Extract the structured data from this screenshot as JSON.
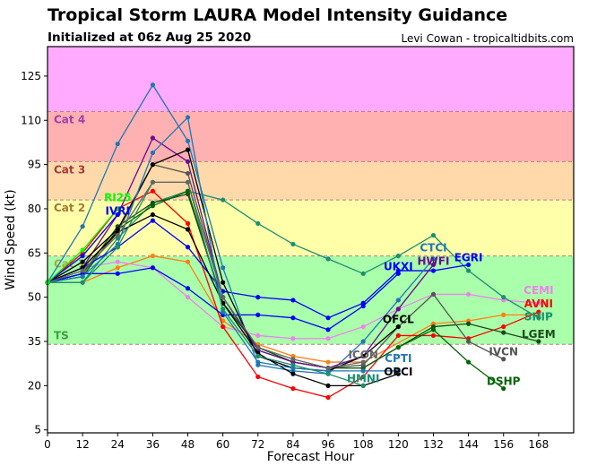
{
  "chart_data": {
    "type": "line",
    "title": "Tropical Storm LAURA Model Intensity Guidance",
    "subtitle": "Initialized at 06z Aug 25 2020",
    "credit": "Levi Cowan - tropicaltidbits.com",
    "xlabel": "Forecast Hour",
    "ylabel": "Wind Speed (kt)",
    "xlim": [
      0,
      180
    ],
    "ylim": [
      4,
      135
    ],
    "xticks": [
      0,
      12,
      24,
      36,
      48,
      60,
      72,
      84,
      96,
      108,
      120,
      132,
      144,
      156,
      168
    ],
    "yticks": [
      5,
      20,
      35,
      50,
      65,
      80,
      95,
      110,
      125
    ],
    "x": [
      0,
      12,
      24,
      36,
      48,
      60,
      72,
      84,
      96,
      108,
      120,
      132,
      144,
      156,
      168
    ],
    "bands": [
      {
        "label": "TS",
        "from": 34,
        "to": 64,
        "color": "#aaffaa",
        "text_color": "#3aa13a"
      },
      {
        "label": "Cat 1",
        "from": 64,
        "to": 83,
        "color": "#ffffaa",
        "text_color": "#a8a840"
      },
      {
        "label": "Cat 2",
        "from": 83,
        "to": 96,
        "color": "#ffd9aa",
        "text_color": "#a8763a"
      },
      {
        "label": "Cat 3",
        "from": 96,
        "to": 113,
        "color": "#ffb0b0",
        "text_color": "#a83a3a"
      },
      {
        "label": "Cat 4",
        "from": 113,
        "to": 135,
        "color": "#ffaaff",
        "text_color": "#a040b0"
      }
    ],
    "series": [
      {
        "name": "",
        "color": "#ff7f0e",
        "values": [
          55,
          55,
          60,
          64,
          62,
          42,
          34,
          30,
          28,
          28,
          null,
          41,
          42,
          44,
          44
        ]
      },
      {
        "name": "CEMI",
        "color": "#ee82ee",
        "values": [
          55,
          60,
          62,
          60,
          50,
          40,
          37,
          36,
          36,
          40,
          46,
          51,
          51,
          49,
          48
        ]
      },
      {
        "name": "AVNI",
        "color": "#ff0000",
        "values": [
          55,
          65,
          80,
          86,
          75,
          40,
          23,
          19,
          16,
          23,
          37,
          37,
          36,
          40,
          45
        ]
      },
      {
        "name": "SHIP",
        "color": "#1a9070",
        "values": [
          55,
          55,
          70,
          82,
          86,
          83,
          75,
          68,
          63,
          58,
          64,
          71,
          59,
          50,
          43
        ]
      },
      {
        "name": "LGEM",
        "color": "#1a4a1a",
        "values": [
          55,
          58,
          74,
          82,
          85,
          48,
          33,
          28,
          26,
          26,
          33,
          40,
          41,
          38,
          35
        ]
      },
      {
        "name": "DSHP",
        "color": "#006400",
        "values": [
          55,
          57,
          73,
          81,
          86,
          48,
          33,
          28,
          26,
          26,
          33,
          39,
          28,
          19,
          null
        ]
      },
      {
        "name": "IVCN",
        "color": "#555555",
        "values": [
          55,
          58,
          72,
          95,
          92,
          50,
          32,
          28,
          26,
          27,
          40,
          51,
          35,
          29,
          null
        ]
      },
      {
        "name": "EGRI",
        "color": "#0000ff",
        "values": [
          55,
          60,
          67,
          76,
          67,
          52,
          50,
          49,
          43,
          48,
          59,
          59,
          61,
          null,
          null
        ]
      },
      {
        "name": "UKXI",
        "color": "#0000ff",
        "values": [
          55,
          58,
          58,
          60,
          53,
          44,
          44,
          43,
          39,
          47,
          58,
          null,
          null,
          null,
          null
        ]
      },
      {
        "name": "CTCI",
        "color": "#1f77b4",
        "values": [
          55,
          74,
          102,
          122,
          103,
          60,
          27,
          25,
          24,
          35,
          49,
          63,
          null,
          null,
          null
        ]
      },
      {
        "name": "HWFI",
        "color": "#6a0d91",
        "values": [
          55,
          60,
          78,
          104,
          96,
          50,
          32,
          28,
          26,
          30,
          46,
          61,
          null,
          null,
          null
        ]
      },
      {
        "name": "OFCL",
        "color": "#000000",
        "values": [
          55,
          62,
          73,
          95,
          100,
          55,
          30,
          26,
          25,
          30,
          40,
          null,
          null,
          null,
          null
        ]
      },
      {
        "name": "OPCI",
        "color": "#000000",
        "values": [
          55,
          60,
          72,
          78,
          73,
          48,
          31,
          24,
          20,
          20,
          24,
          null,
          null,
          null,
          null
        ]
      },
      {
        "name": "CPTI",
        "color": "#1f77b4",
        "values": [
          55,
          57,
          68,
          99,
          111,
          45,
          28,
          26,
          25,
          25,
          25,
          null,
          null,
          null,
          null
        ]
      },
      {
        "name": "HMNI",
        "color": "#1a9070",
        "values": [
          55,
          55,
          67,
          89,
          89,
          46,
          30,
          27,
          24,
          20,
          null,
          null,
          null,
          null,
          null
        ]
      },
      {
        "name": "ICON",
        "color": "#666666",
        "values": [
          55,
          59,
          71,
          89,
          89,
          50,
          33,
          29,
          26,
          28,
          null,
          null,
          null,
          null,
          null
        ]
      },
      {
        "name": "IVRI",
        "color": "#0000ff",
        "values": [
          55,
          64,
          78,
          null,
          null,
          null,
          null,
          null,
          null,
          null,
          null,
          null,
          null,
          null,
          null
        ]
      },
      {
        "name": "RI25",
        "color": "#00ff00",
        "values": [
          55,
          66,
          80,
          null,
          null,
          null,
          null,
          null,
          null,
          null,
          null,
          null,
          null,
          null,
          null
        ]
      }
    ]
  }
}
